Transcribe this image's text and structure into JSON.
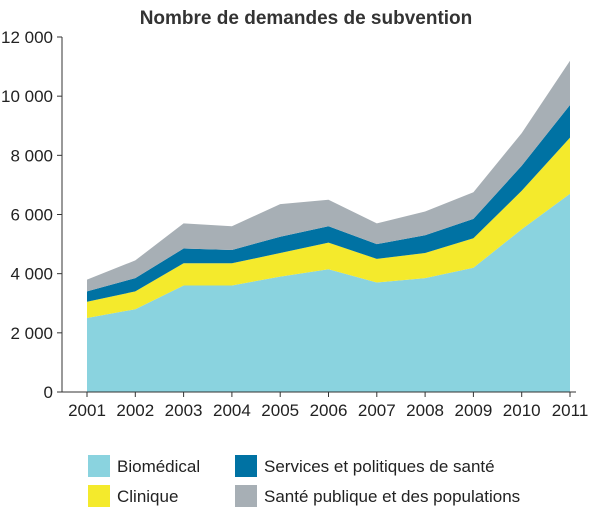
{
  "chart_data": {
    "type": "area",
    "stacked": true,
    "title": "Nombre de demandes de subvention",
    "xlabel": "",
    "ylabel": "",
    "x": [
      "2001",
      "2002",
      "2003",
      "2004",
      "2005",
      "2006",
      "2007",
      "2008",
      "2009",
      "2010",
      "2011"
    ],
    "ylim": [
      0,
      12000
    ],
    "yticks": [
      0,
      2000,
      4000,
      6000,
      8000,
      10000,
      12000
    ],
    "ytick_labels": [
      "0",
      "2 000",
      "4 000",
      "6 000",
      "8 000",
      "10 000",
      "12 000"
    ],
    "grid": false,
    "legend_position": "bottom",
    "series": [
      {
        "name": "Biomédical",
        "color": "#8ad3df",
        "values": [
          2500,
          2800,
          3600,
          3600,
          3900,
          4150,
          3700,
          3850,
          4200,
          5500,
          6700
        ]
      },
      {
        "name": "Clinique",
        "color": "#f4ea2c",
        "values": [
          550,
          600,
          750,
          750,
          800,
          900,
          800,
          850,
          1000,
          1300,
          1900
        ]
      },
      {
        "name": "Services et politiques de santé",
        "color": "#0072a3",
        "values": [
          350,
          450,
          500,
          450,
          550,
          550,
          500,
          600,
          650,
          850,
          1100
        ]
      },
      {
        "name": "Santé publique et des populations",
        "color": "#a7afb5",
        "values": [
          400,
          600,
          850,
          800,
          1100,
          900,
          700,
          800,
          900,
          1100,
          1500
        ]
      }
    ]
  }
}
